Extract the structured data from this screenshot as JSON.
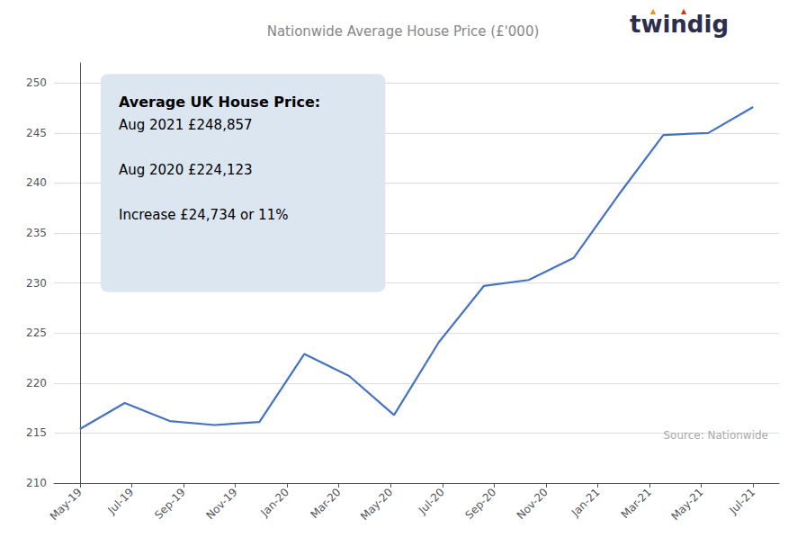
{
  "chart_data": {
    "type": "line",
    "title": "Nationwide Average House Price (£'000)",
    "title_color": "#888888",
    "x": [
      0,
      0.8666666666666667,
      1.7333333333333334,
      2.6,
      3.466666666666667,
      4.333333333333333,
      5.2,
      6.066666666666666,
      6.933333333333334,
      7.8,
      8.666666666666666,
      9.533333333333333,
      10.4,
      11.266666666666667,
      12.133333333333333,
      13
    ],
    "values": [
      215.4,
      218.0,
      216.2,
      215.8,
      216.1,
      222.9,
      220.7,
      216.8,
      224.1,
      229.7,
      230.3,
      232.5,
      238.8,
      244.8,
      245.0,
      247.6
    ],
    "color": "#4472C4",
    "xlim": [
      -0.5,
      13.5
    ],
    "xticks": [
      {
        "value": 0,
        "label": "May-19"
      },
      {
        "value": 1,
        "label": "Jul-19"
      },
      {
        "value": 2,
        "label": "Sep-19"
      },
      {
        "value": 3,
        "label": "Nov-19"
      },
      {
        "value": 4,
        "label": "Jan-20"
      },
      {
        "value": 5,
        "label": "Mar-20"
      },
      {
        "value": 6,
        "label": "May-20"
      },
      {
        "value": 7,
        "label": "Jul-20"
      },
      {
        "value": 8,
        "label": "Sep-20"
      },
      {
        "value": 9,
        "label": "Nov-20"
      },
      {
        "value": 10,
        "label": "Jan-21"
      },
      {
        "value": 11,
        "label": "Mar-21"
      },
      {
        "value": 12,
        "label": "May-21"
      },
      {
        "value": 13,
        "label": "Jul-21"
      }
    ],
    "ylim": [
      210,
      252
    ],
    "yticks": [
      210,
      215,
      220,
      225,
      230,
      235,
      240,
      245,
      250
    ],
    "grid": "y",
    "annotation": {
      "title": "Average UK House Price:",
      "lines": [
        "Aug 2021 £248,857",
        "Aug 2020 £224,123",
        "Increase £24,734 or 11%"
      ],
      "color": "#dce6f1"
    },
    "source": "Source: Nationwide",
    "logo": {
      "text": "twindig",
      "color": "#2d2d4e",
      "marks": [
        {
          "text": "▲",
          "color": "#ff8c00"
        },
        {
          "text": "▲",
          "color": "#e03000"
        }
      ]
    }
  }
}
